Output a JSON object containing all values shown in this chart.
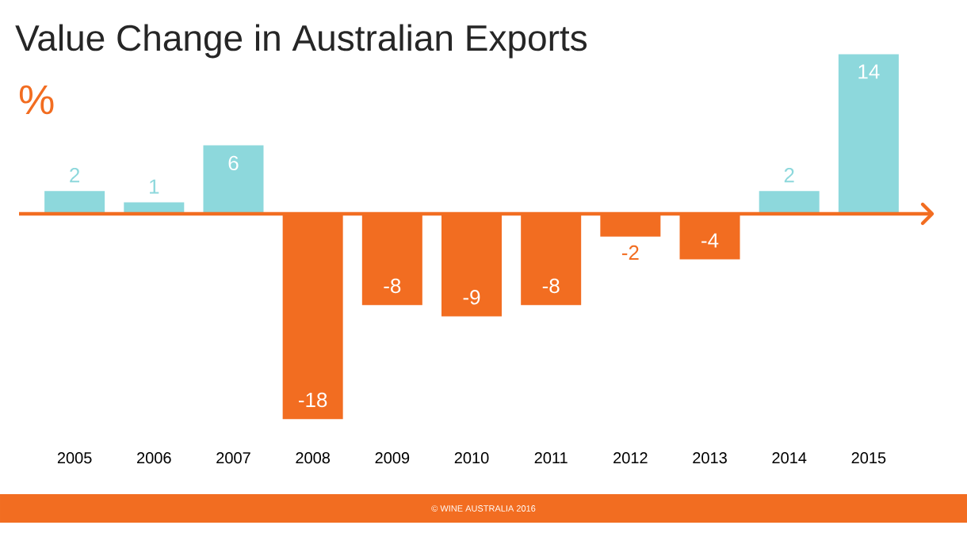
{
  "chart_data": {
    "type": "bar",
    "title": "Value Change in Australian Exports",
    "ylabel": "%",
    "categories": [
      "2005",
      "2006",
      "2007",
      "2008",
      "2009",
      "2010",
      "2011",
      "2012",
      "2013",
      "2014",
      "2015"
    ],
    "values": [
      2,
      1,
      6,
      -18,
      -8,
      -9,
      -8,
      -2,
      -4,
      2,
      14
    ],
    "colors": [
      "#8dd8dc",
      "#8dd8dc",
      "#8dd8dc",
      "#f26d21",
      "#f26d21",
      "#f26d21",
      "#f26d21",
      "#f26d21",
      "#f26d21",
      "#8dd8dc",
      "#8dd8dc"
    ],
    "data_labels": true,
    "ref_lines": [
      {
        "axis": "y",
        "value": 0,
        "color": "#f26d21"
      }
    ],
    "annotations": [
      "© WINE AUSTRALIA 2016"
    ]
  }
}
